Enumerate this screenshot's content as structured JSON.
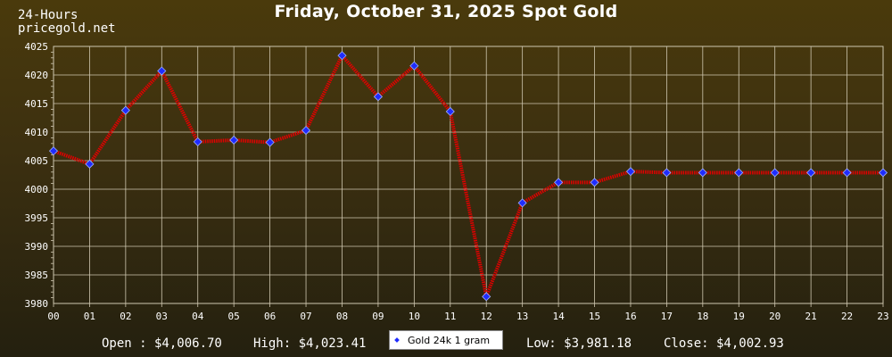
{
  "header": {
    "range_label": "24-Hours",
    "site": "pricegold.net"
  },
  "colors": {
    "line": "#e00000",
    "marker": "#1f2cff",
    "grid": "#cfc7b0",
    "text": "#ffffff"
  },
  "chart_data": {
    "type": "line",
    "title": "Friday, October 31, 2025 Spot Gold",
    "xlabel": "",
    "ylabel": "",
    "categories": [
      "00",
      "01",
      "02",
      "03",
      "04",
      "05",
      "06",
      "07",
      "08",
      "09",
      "10",
      "11",
      "12",
      "13",
      "14",
      "15",
      "16",
      "17",
      "18",
      "19",
      "20",
      "21",
      "22",
      "23"
    ],
    "yticks": [
      3980,
      3985,
      3990,
      3995,
      4000,
      4005,
      4010,
      4015,
      4020,
      4025
    ],
    "ylim": [
      3980,
      4025
    ],
    "grid": true,
    "legend_position": "bottom-center",
    "series": [
      {
        "name": "Gold 24k 1 gram",
        "values": [
          4006.7,
          4004.4,
          4013.8,
          4020.7,
          4008.3,
          4008.6,
          4008.2,
          4010.3,
          4023.4,
          4016.2,
          4021.6,
          4013.6,
          3981.2,
          3997.6,
          4001.2,
          4001.2,
          4003.1,
          4002.9,
          4002.9,
          4002.9,
          4002.9,
          4002.9,
          4002.9,
          4002.9
        ]
      }
    ]
  },
  "footer": {
    "open": "Open : $4,006.70",
    "high": "High: $4,023.41",
    "low": "Low: $3,981.18",
    "close": "Close: $4,002.93"
  }
}
